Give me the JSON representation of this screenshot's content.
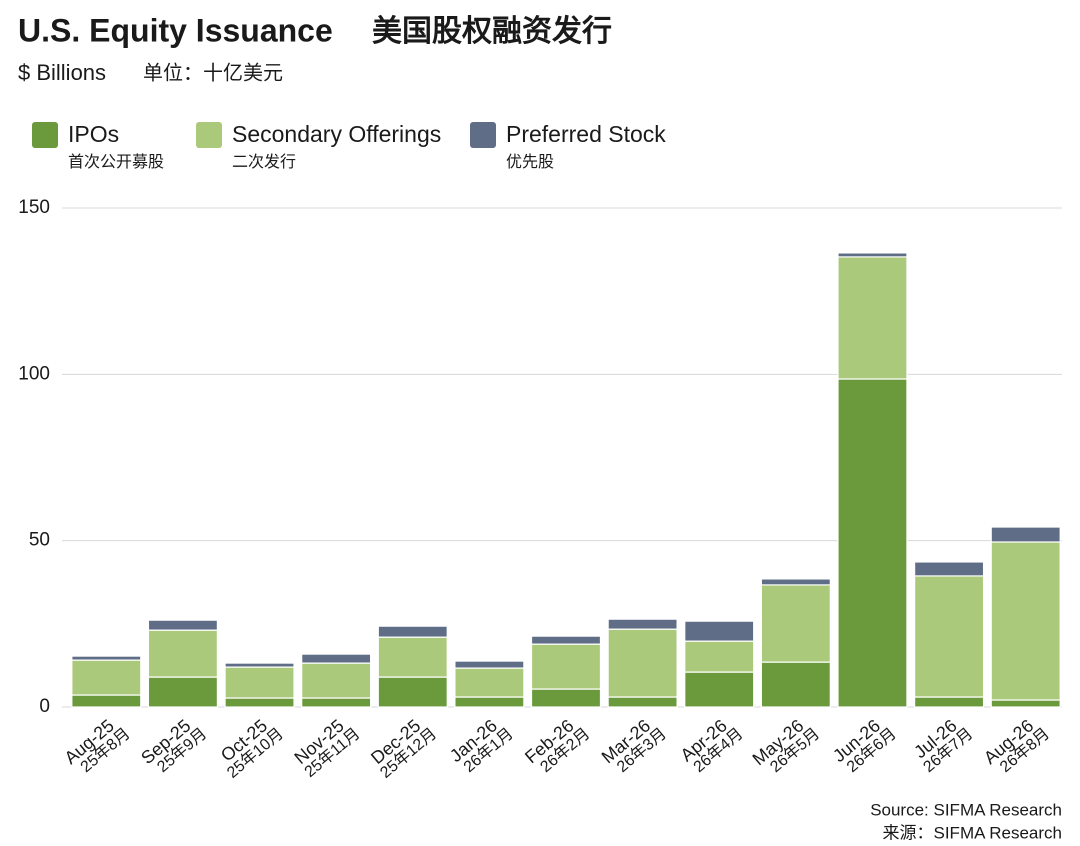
{
  "chart_data": {
    "type": "stacked-bar",
    "title": "U.S. Equity Issuance",
    "title_cn": "美国股权融资发行",
    "subtitle": "$ Billions",
    "subtitle_cn": "单位：十亿美元",
    "categories": [
      "Aug-25",
      "Sep-25",
      "Oct-25",
      "Nov-25",
      "Dec-25",
      "Jan-26",
      "Feb-26",
      "Mar-26",
      "Apr-26",
      "May-26",
      "Jun-26",
      "Jul-26",
      "Aug-26"
    ],
    "categories_cn": [
      "25年8月",
      "25年9月",
      "25年10月",
      "25年11月",
      "25年12月",
      "26年1月",
      "26年2月",
      "26年3月",
      "26年4月",
      "26年5月",
      "26年6月",
      "26年7月",
      "26年8月"
    ],
    "series": [
      {
        "name": "IPOs",
        "name_cn": "首次公开募股",
        "color": "#6a9a3c",
        "values": [
          3.6,
          9.0,
          2.7,
          2.7,
          9.0,
          3.0,
          5.4,
          3.0,
          10.5,
          13.5,
          98.6,
          3.0,
          2.1
        ]
      },
      {
        "name": "Secondary Offerings",
        "name_cn": "二次发行",
        "color": "#abc97b",
        "values": [
          10.5,
          14.1,
          9.3,
          10.5,
          12.0,
          8.7,
          13.5,
          20.4,
          9.3,
          23.2,
          36.7,
          36.4,
          47.5
        ]
      },
      {
        "name": "Preferred Stock",
        "name_cn": "优先股",
        "color": "#5f6e86",
        "values": [
          1.2,
          3.0,
          1.2,
          2.7,
          3.3,
          2.1,
          2.4,
          3.0,
          6.0,
          1.8,
          1.2,
          4.2,
          4.5
        ]
      }
    ],
    "ylim": [
      0,
      150
    ],
    "yticks": [
      0,
      50,
      100,
      150
    ],
    "grid": true,
    "source": "Source: SIFMA Research",
    "source_cn": "来源：SIFMA Research"
  }
}
